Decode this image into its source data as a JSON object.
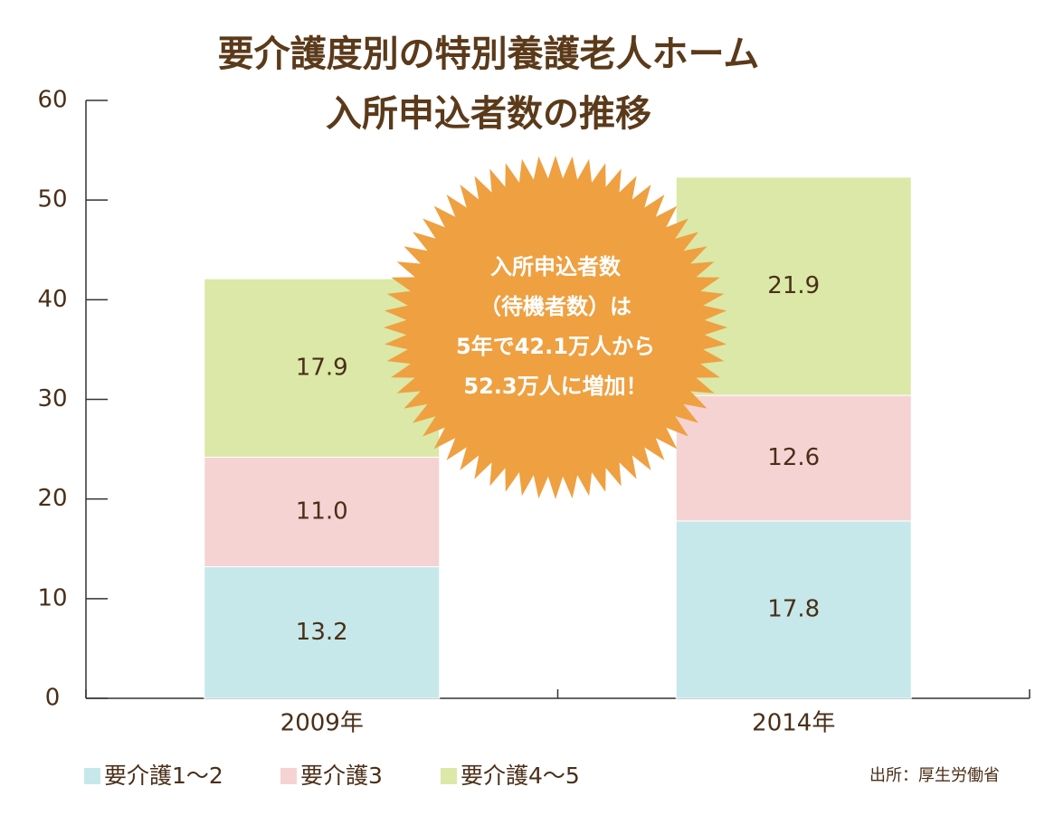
{
  "chart_data": {
    "type": "stacked_bar",
    "title": [
      "要介護度別の特別養護老人ホーム",
      "入所申込者数の推移"
    ],
    "categories": [
      "2009年",
      "2014年"
    ],
    "series": [
      {
        "name": "要介護1〜2",
        "color": "#c6e8ea",
        "values": [
          13.2,
          17.8
        ]
      },
      {
        "name": "要介護3",
        "color": "#f6d3d3",
        "values": [
          11.0,
          12.6
        ],
        "value_labels": [
          "11.0",
          "12.6"
        ]
      },
      {
        "name": "要介護4〜5",
        "color": "#dbe8a7",
        "values": [
          17.9,
          21.9
        ]
      }
    ],
    "ylim": [
      0,
      60
    ],
    "yticks": [
      0,
      10,
      20,
      30,
      40,
      50,
      60
    ],
    "annotation": [
      "入所申込者数",
      "（待機者数）は",
      "5年で42.1万人から",
      "52.3万人に増加！"
    ],
    "annotation_color": "#efa041",
    "source": "出所：厚生労働省"
  }
}
